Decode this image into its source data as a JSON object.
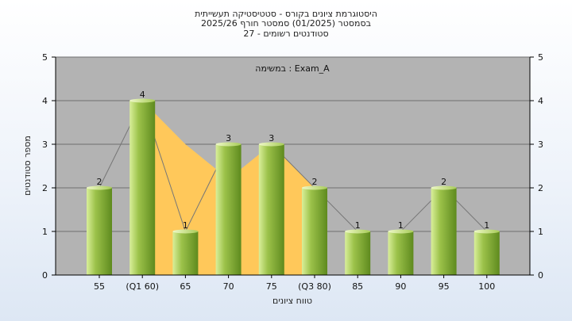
{
  "header": {
    "title_line1": "היסטוגרמת ציונים בקורס - סטטיסטיקה תעשייתית",
    "title_line2": "בסמסטר  (01/2025)  סמסטר חורף 2025/26",
    "title_line3": "סטודנטים רשומים - 27"
  },
  "chart_data": {
    "type": "bar",
    "title": "היסטוגרמת ציונים בקורס - סטטיסטיקה תעשייתית",
    "annotation": "במשימה : Exam_A",
    "xlabel": "טווח ציונים",
    "ylabel": "מספר סטודנטים",
    "categories": [
      "55",
      "(Q1 60)",
      "65",
      "70",
      "75",
      "(Q3 80)",
      "85",
      "90",
      "95",
      "100"
    ],
    "values": [
      2,
      4,
      1,
      3,
      3,
      2,
      1,
      1,
      2,
      1
    ],
    "ylim": [
      0,
      5
    ],
    "yticks": [
      0,
      1,
      2,
      3,
      4,
      5
    ],
    "grid": true,
    "legend": "none",
    "iqr_area": {
      "from": "(Q1 60)",
      "to": "(Q3 80)",
      "values": [
        4,
        3,
        2.2,
        3,
        2
      ]
    },
    "colors": {
      "plot_bg": "#b3b3b3",
      "bar_light": "#d9ef9a",
      "bar_mid": "#9cc24a",
      "bar_dark": "#5e8a1e",
      "area_fill": "#ffc85a",
      "line": "#777777"
    }
  }
}
